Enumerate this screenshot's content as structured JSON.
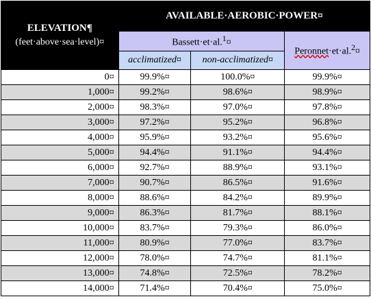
{
  "header": {
    "elevation": "ELEVATION¶",
    "elevation_sub": "(feet·above·sea·level)¤",
    "title": "AVAILABLE·AEROBIC·POWER¤",
    "bassett": {
      "name": "Bassett·et·al.",
      "sup": "1",
      "mark": "¤"
    },
    "peronnet": {
      "name": "Peronnet",
      "rest": "·et·al.",
      "sup": "2",
      "mark": "¤"
    },
    "acclimatized": "acclimatized¤",
    "non_acclimatized": "non-acclimatized¤"
  },
  "table": {
    "rows": [
      [
        "0¤",
        "99.9%¤",
        "100.0%¤",
        "99.9%¤"
      ],
      [
        "1,000¤",
        "99.2%¤",
        "98.6%¤",
        "98.9%¤"
      ],
      [
        "2,000¤",
        "98.3%¤",
        "97.0%¤",
        "97.8%¤"
      ],
      [
        "3,000¤",
        "97.2%¤",
        "95.2%¤",
        "96.8%¤"
      ],
      [
        "4,000¤",
        "95.9%¤",
        "93.2%¤",
        "95.6%¤"
      ],
      [
        "5,000¤",
        "94.4%¤",
        "91.1%¤",
        "94.4%¤"
      ],
      [
        "6,000¤",
        "92.7%¤",
        "88.9%¤",
        "93.1%¤"
      ],
      [
        "7,000¤",
        "90.7%¤",
        "86.5%¤",
        "91.6%¤"
      ],
      [
        "8,000¤",
        "88.6%¤",
        "84.2%¤",
        "89.9%¤"
      ],
      [
        "9,000¤",
        "86.3%¤",
        "81.7%¤",
        "88.1%¤"
      ],
      [
        "10,000¤",
        "83.7%¤",
        "79.3%¤",
        "86.0%¤"
      ],
      [
        "11,000¤",
        "80.9%¤",
        "77.0%¤",
        "83.7%¤"
      ],
      [
        "12,000¤",
        "78.0%¤",
        "74.7%¤",
        "81.1%¤"
      ],
      [
        "13,000¤",
        "74.8%¤",
        "72.5%¤",
        "78.2%¤"
      ],
      [
        "14,000¤",
        "71.4%¤",
        "70.4%¤",
        "75.0%¤"
      ]
    ]
  }
}
